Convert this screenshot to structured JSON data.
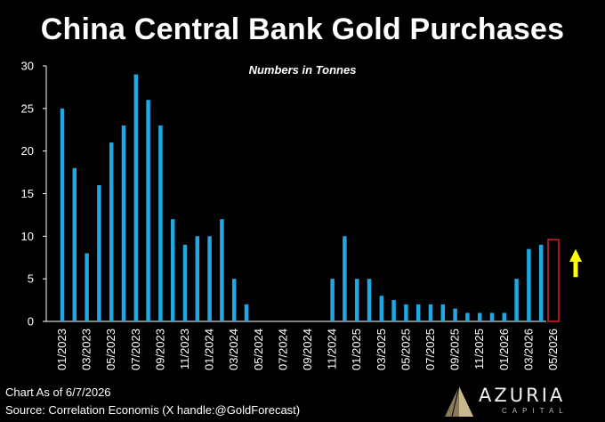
{
  "title": "China Central Bank Gold Purchases",
  "subtitle": "Numbers in Tonnes",
  "footer": {
    "chart_as_of": "Chart As of 6/7/2026",
    "source": "Source: Correlation Economis (X handle:@GoldForecast)"
  },
  "logo": {
    "name": "AZURIA",
    "sub": "CAPITAL"
  },
  "colors": {
    "bar": "#1fa8e1",
    "highlight_box": "#d2232a",
    "arrow": "#ffff00",
    "axis": "#ffffff",
    "background": "#000000"
  },
  "chart_data": {
    "type": "bar",
    "title": "China Central Bank Gold Purchases",
    "subtitle": "Numbers in Tonnes",
    "xlabel": "",
    "ylabel": "",
    "ylim": [
      0,
      30
    ],
    "yticks": [
      0,
      5,
      10,
      15,
      20,
      25,
      30
    ],
    "grid": false,
    "legend": "none",
    "categories": [
      "01/2023",
      "02/2023",
      "03/2023",
      "04/2023",
      "05/2023",
      "06/2023",
      "07/2023",
      "08/2023",
      "09/2023",
      "10/2023",
      "11/2023",
      "12/2023",
      "01/2024",
      "02/2024",
      "03/2024",
      "04/2024",
      "05/2024",
      "06/2024",
      "07/2024",
      "08/2024",
      "09/2024",
      "10/2024",
      "11/2024",
      "12/2024",
      "01/2025",
      "02/2025",
      "03/2025",
      "04/2025",
      "05/2025",
      "06/2025",
      "07/2025",
      "08/2025",
      "09/2025",
      "10/2025",
      "11/2025",
      "12/2025",
      "01/2026",
      "02/2026",
      "03/2026",
      "04/2026",
      "05/2026"
    ],
    "tick_labels": [
      "01/2023",
      "03/2023",
      "05/2023",
      "07/2023",
      "09/2023",
      "11/2023",
      "01/2024",
      "03/2024",
      "05/2024",
      "07/2024",
      "09/2024",
      "11/2024",
      "01/2025",
      "03/2025",
      "05/2025",
      "07/2025",
      "09/2025",
      "11/2025",
      "01/2026",
      "03/2026",
      "05/2026"
    ],
    "values": [
      25,
      18,
      8,
      16,
      21,
      23,
      29,
      26,
      23,
      12,
      9,
      10,
      10,
      12,
      5,
      2,
      0,
      0,
      0,
      0,
      0,
      0,
      5,
      10,
      5,
      5,
      3,
      2.5,
      2,
      2,
      2,
      2,
      1.5,
      1,
      1,
      1,
      1,
      5,
      8.5,
      9,
      null
    ],
    "highlighted": "05/2026",
    "annotations": [
      {
        "type": "box",
        "target": "05/2026"
      },
      {
        "type": "arrow-up",
        "target": "05/2026"
      }
    ]
  }
}
